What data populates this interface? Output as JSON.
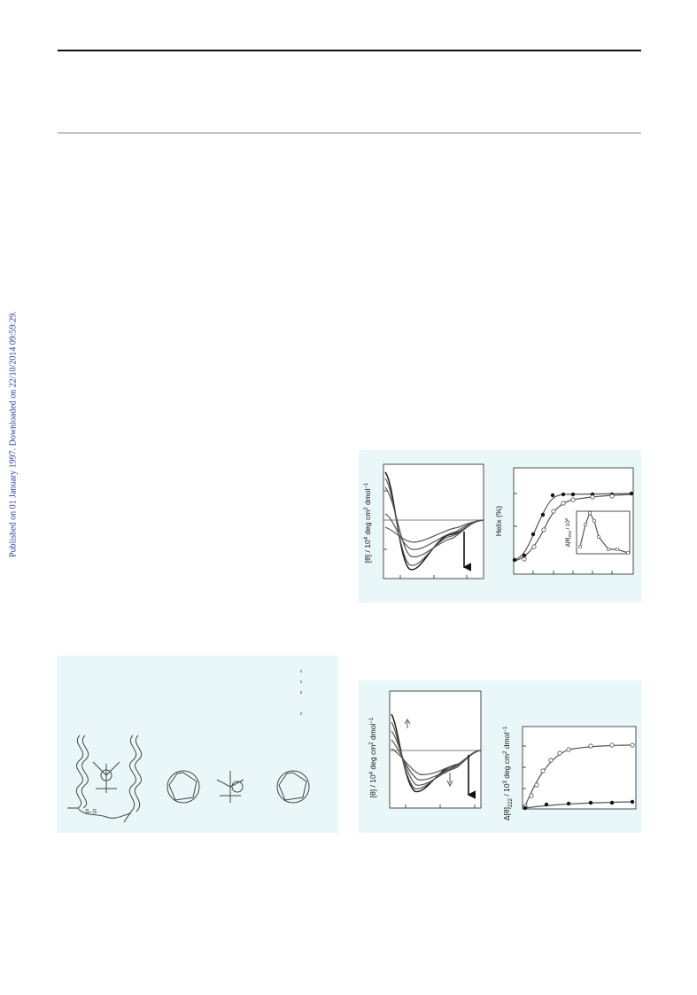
{
  "side_note": "Published on 01 January 1997. Downloaded on 22/10/2014 09:59:29.",
  "figure_1": {
    "y_label_left": [
      "[θ] / 10",
      "4",
      " deg cm",
      "2",
      " dmol",
      "−1"
    ],
    "y_label_right": "Helix (%)",
    "inset_label": [
      "Δ[θ]",
      "222",
      " / 10",
      "3"
    ]
  },
  "figure_2": {
    "bond_label": "S–S"
  },
  "figure_3": {
    "y_label_left": [
      "[θ] / 10",
      "4",
      " deg cm",
      "2",
      " dmol",
      "−1"
    ],
    "y_label_right": [
      "Δ[θ]",
      "222",
      " / 10",
      "3",
      " deg cm",
      "2",
      " dmol",
      "−1"
    ]
  }
}
